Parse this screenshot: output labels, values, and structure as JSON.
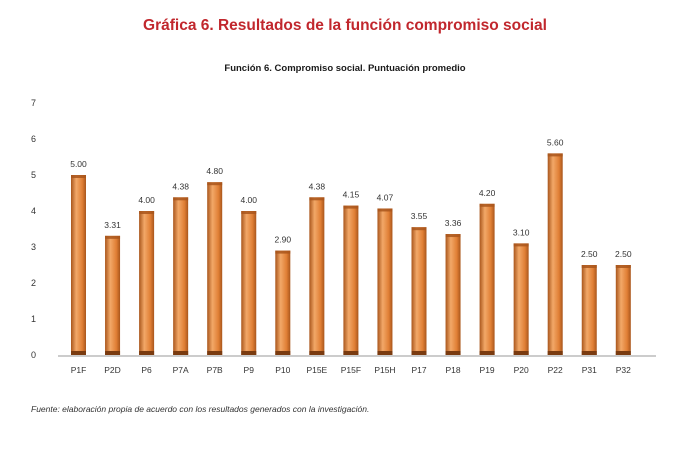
{
  "figure_title": "Gráfica 6. Resultados de la función compromiso social",
  "source_note": "Fuente: elaboración propia de acuerdo con los resultados generados con la investigación.",
  "colors": {
    "title": "#c1272d",
    "bar_light": "#f2a868",
    "bar_mid": "#e07f35",
    "bar_dark": "#a9561c",
    "bar_base": "#7a3b10",
    "axis": "#9a9a9a",
    "text": "#333333"
  },
  "chart_data": {
    "type": "bar",
    "title": "Función 6. Compromiso social. Puntuación promedio",
    "xlabel": "",
    "ylabel": "",
    "categories": [
      "P1F",
      "P2D",
      "P6",
      "P7A",
      "P7B",
      "P9",
      "P10",
      "P15E",
      "P15F",
      "P15H",
      "P17",
      "P18",
      "P19",
      "P20",
      "P22",
      "P31",
      "P32"
    ],
    "values": [
      5.0,
      3.31,
      4.0,
      4.38,
      4.8,
      4.0,
      2.9,
      4.38,
      4.15,
      4.07,
      3.55,
      3.36,
      4.2,
      3.1,
      5.6,
      2.5,
      2.5
    ],
    "value_labels": [
      "5.00",
      "3.31",
      "4.00",
      "4.38",
      "4.80",
      "4.00",
      "2.90",
      "4.38",
      "4.15",
      "4.07",
      "3.55",
      "3.36",
      "4.20",
      "3.10",
      "5.60",
      "2.50",
      "2.50"
    ],
    "yticks": [
      "0",
      "1",
      "2",
      "3",
      "4",
      "5",
      "6",
      "7"
    ],
    "ylim": [
      0,
      7
    ],
    "grid": false,
    "legend": "none"
  }
}
